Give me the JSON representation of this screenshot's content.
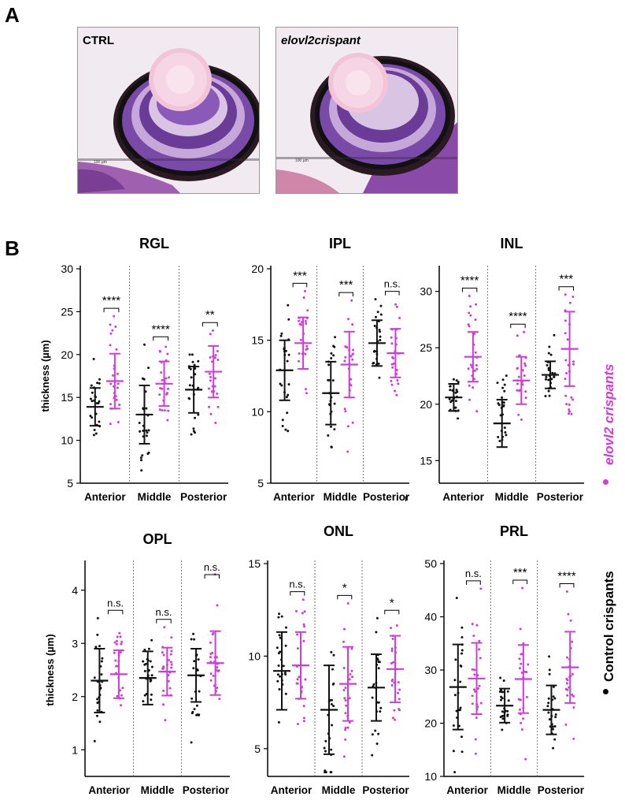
{
  "figure": {
    "panel_a_label": "A",
    "panel_b_label": "B",
    "images": [
      {
        "label": "CTRL",
        "scale_text": "100 µm"
      },
      {
        "label": "elovl2crispant",
        "scale_text": "100 µm"
      }
    ],
    "legend": {
      "elovl2_label": "elovl2 crispants",
      "control_label": "Control crispants",
      "colors": {
        "elovl2": "#d03cd8",
        "control": "#111111"
      }
    },
    "stray_mark": "r"
  },
  "chart_data": [
    {
      "type": "scatter",
      "title": "RGL",
      "ylabel": "thickness (µm)",
      "ylim": [
        5,
        30
      ],
      "yticks": [
        5,
        10,
        15,
        20,
        25,
        30
      ],
      "categories": [
        "Anterior",
        "Middle",
        "Posterior"
      ],
      "series": [
        {
          "name": "Control crispants",
          "means": [
            13.9,
            13.0,
            15.9
          ],
          "sd": [
            2.2,
            3.4,
            2.7
          ]
        },
        {
          "name": "elovl2 crispants",
          "means": [
            16.9,
            16.6,
            18.0
          ],
          "sd": [
            3.2,
            2.6,
            3.0
          ]
        }
      ],
      "significance": [
        "****",
        "****",
        "**"
      ]
    },
    {
      "type": "scatter",
      "title": "IPL",
      "ylabel": "",
      "ylim": [
        5,
        20
      ],
      "yticks": [
        5,
        10,
        15,
        20
      ],
      "categories": [
        "Anterior",
        "Middle",
        "Posterior"
      ],
      "series": [
        {
          "name": "Control crispants",
          "means": [
            12.9,
            11.3,
            14.8
          ],
          "sd": [
            2.1,
            2.2,
            1.6
          ]
        },
        {
          "name": "elovl2 crispants",
          "means": [
            14.8,
            13.3,
            14.1
          ],
          "sd": [
            1.8,
            2.3,
            1.7
          ]
        }
      ],
      "significance": [
        "***",
        "***",
        "n.s."
      ]
    },
    {
      "type": "scatter",
      "title": "INL",
      "ylabel": "",
      "ylim": [
        13,
        32
      ],
      "yticks": [
        15,
        20,
        25,
        30
      ],
      "categories": [
        "Anterior",
        "Middle",
        "Posterior"
      ],
      "series": [
        {
          "name": "Control crispants",
          "means": [
            20.6,
            18.3,
            22.6
          ],
          "sd": [
            1.2,
            2.1,
            1.2
          ]
        },
        {
          "name": "elovl2 crispants",
          "means": [
            24.2,
            22.1,
            24.9
          ],
          "sd": [
            2.2,
            2.1,
            3.3
          ]
        }
      ],
      "significance": [
        "****",
        "****",
        "***"
      ]
    },
    {
      "type": "scatter",
      "title": "OPL",
      "ylabel": "thickness (µm)",
      "ylim": [
        0.5,
        4.5
      ],
      "yticks": [
        1,
        2,
        3,
        4
      ],
      "categories": [
        "Anterior",
        "Middle",
        "Posterior"
      ],
      "series": [
        {
          "name": "Control crispants",
          "means": [
            2.3,
            2.35,
            2.4
          ],
          "sd": [
            0.6,
            0.5,
            0.5
          ]
        },
        {
          "name": "elovl2 crispants",
          "means": [
            2.42,
            2.47,
            2.63
          ],
          "sd": [
            0.45,
            0.45,
            0.6
          ]
        }
      ],
      "significance": [
        "n.s.",
        "n.s.",
        "n.s."
      ]
    },
    {
      "type": "scatter",
      "title": "ONL",
      "ylabel": "",
      "ylim": [
        3.5,
        15
      ],
      "yticks": [
        5,
        10,
        15
      ],
      "categories": [
        "Anterior",
        "Middle",
        "Posterior"
      ],
      "series": [
        {
          "name": "Control crispants",
          "means": [
            9.2,
            7.1,
            8.3
          ],
          "sd": [
            2.1,
            2.4,
            1.8
          ]
        },
        {
          "name": "elovl2 crispants",
          "means": [
            9.5,
            8.5,
            9.3
          ],
          "sd": [
            1.8,
            2.0,
            1.8
          ]
        }
      ],
      "significance": [
        "n.s.",
        "*",
        "*"
      ]
    },
    {
      "type": "scatter",
      "title": "PRL",
      "ylabel": "",
      "ylim": [
        10,
        50
      ],
      "yticks": [
        10,
        20,
        30,
        40,
        50
      ],
      "categories": [
        "Anterior",
        "Middle",
        "Posterior"
      ],
      "series": [
        {
          "name": "Control crispants",
          "means": [
            26.8,
            23.3,
            22.5
          ],
          "sd": [
            8.0,
            3.2,
            4.6
          ]
        },
        {
          "name": "elovl2 crispants",
          "means": [
            28.4,
            28.3,
            30.5
          ],
          "sd": [
            6.7,
            6.4,
            6.7
          ]
        }
      ],
      "significance": [
        "n.s.",
        "***",
        "****"
      ]
    }
  ]
}
